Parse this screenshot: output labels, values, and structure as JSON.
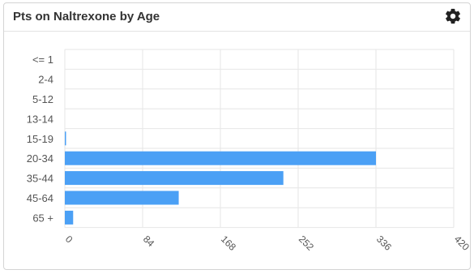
{
  "panel": {
    "title": "Pts on Naltrexone by Age",
    "settings_icon": "gear-icon"
  },
  "colors": {
    "bar": "#4ba0f5",
    "grid": "#e6e6e6",
    "axis_text": "#555555"
  },
  "chart_data": {
    "type": "bar",
    "orientation": "horizontal",
    "title": "Pts on Naltrexone by Age",
    "categories": [
      "<= 1",
      "2-4",
      "5-12",
      "13-14",
      "15-19",
      "20-34",
      "35-44",
      "45-64",
      "65 +"
    ],
    "values": [
      0,
      0,
      0,
      0,
      1,
      336,
      236,
      123,
      9
    ],
    "xlim": [
      0,
      420
    ],
    "xticks": [
      0,
      84,
      168,
      252,
      336,
      420
    ],
    "grid": true,
    "legend": "none"
  }
}
